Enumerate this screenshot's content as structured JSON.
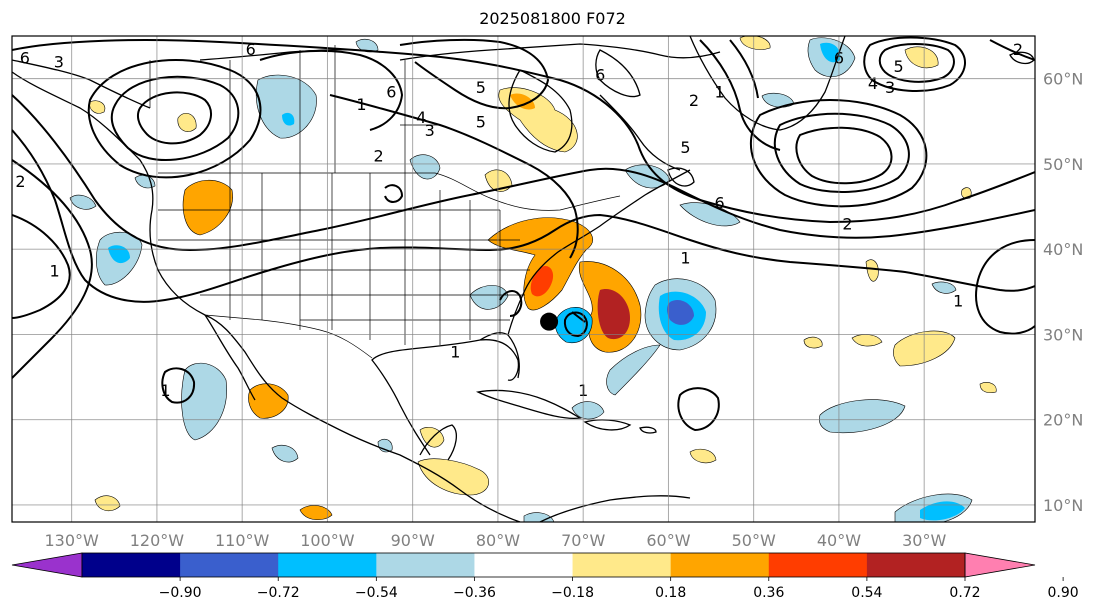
{
  "title": "2025081800 F072",
  "map": {
    "lon_range": [
      -137,
      -17
    ],
    "lat_range": [
      8,
      65
    ],
    "lon_ticks": [
      {
        "value": -130,
        "label": "130°W"
      },
      {
        "value": -120,
        "label": "120°W"
      },
      {
        "value": -110,
        "label": "110°W"
      },
      {
        "value": -100,
        "label": "100°W"
      },
      {
        "value": -90,
        "label": "90°W"
      },
      {
        "value": -80,
        "label": "80°W"
      },
      {
        "value": -70,
        "label": "70°W"
      },
      {
        "value": -60,
        "label": "60°W"
      },
      {
        "value": -50,
        "label": "50°W"
      },
      {
        "value": -40,
        "label": "40°W"
      },
      {
        "value": -30,
        "label": "30°W"
      }
    ],
    "lat_ticks": [
      {
        "value": 60,
        "label": "60°N"
      },
      {
        "value": 50,
        "label": "50°N"
      },
      {
        "value": 40,
        "label": "40°N"
      },
      {
        "value": 30,
        "label": "30°N"
      },
      {
        "value": 20,
        "label": "20°N"
      },
      {
        "value": 10,
        "label": "10°N"
      }
    ],
    "gridlines": true,
    "storm_marker": {
      "lon": -74,
      "lat": 31.5
    }
  },
  "colorbar": {
    "tick_labels": [
      "−0.90",
      "−0.72",
      "−0.54",
      "−0.36",
      "−0.18",
      "0.18",
      "0.36",
      "0.54",
      "0.72",
      "0.90"
    ],
    "colors": [
      "#9a32cd",
      "#00008b",
      "#3a5fcd",
      "#00bfff",
      "#add8e6",
      "#ffffff",
      "#ffe98a",
      "#ffa500",
      "#ff3d00",
      "#b22222",
      "#ff7fb0"
    ],
    "extend": "both"
  },
  "contour_labels": [
    {
      "text": "6",
      "lon": -135.5,
      "lat": 62.5
    },
    {
      "text": "3",
      "lon": -131.5,
      "lat": 62.0
    },
    {
      "text": "6",
      "lon": -109,
      "lat": 63.5
    },
    {
      "text": "6",
      "lon": -92.5,
      "lat": 58.5
    },
    {
      "text": "5",
      "lon": -82,
      "lat": 59.0
    },
    {
      "text": "1",
      "lon": -96,
      "lat": 57.0
    },
    {
      "text": "4",
      "lon": -89,
      "lat": 55.5
    },
    {
      "text": "5",
      "lon": -82,
      "lat": 55.0
    },
    {
      "text": "3",
      "lon": -88,
      "lat": 54.0
    },
    {
      "text": "2",
      "lon": -94,
      "lat": 51.0
    },
    {
      "text": "2",
      "lon": -136,
      "lat": 48.0
    },
    {
      "text": "1",
      "lon": -132,
      "lat": 37.5
    },
    {
      "text": "6",
      "lon": -68,
      "lat": 60.5
    },
    {
      "text": "2",
      "lon": -57,
      "lat": 57.5
    },
    {
      "text": "1",
      "lon": -54,
      "lat": 58.5
    },
    {
      "text": "5",
      "lon": -58,
      "lat": 52.0
    },
    {
      "text": "6",
      "lon": -40,
      "lat": 62.5
    },
    {
      "text": "5",
      "lon": -33,
      "lat": 61.5
    },
    {
      "text": "4",
      "lon": -36,
      "lat": 59.5
    },
    {
      "text": "3",
      "lon": -34,
      "lat": 59.0
    },
    {
      "text": "2",
      "lon": -19,
      "lat": 63.5
    },
    {
      "text": "6",
      "lon": -54,
      "lat": 45.5
    },
    {
      "text": "2",
      "lon": -39,
      "lat": 43.0
    },
    {
      "text": "1",
      "lon": -58,
      "lat": 39.0
    },
    {
      "text": "1",
      "lon": -26,
      "lat": 34.0
    },
    {
      "text": "1",
      "lon": -85,
      "lat": 28.0
    },
    {
      "text": "1",
      "lon": -119,
      "lat": 23.5
    },
    {
      "text": "1",
      "lon": -70,
      "lat": 23.5
    }
  ]
}
